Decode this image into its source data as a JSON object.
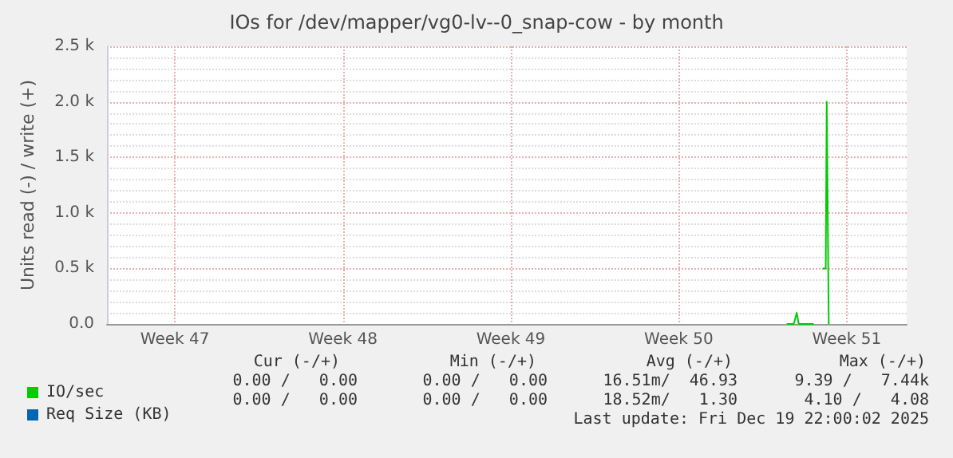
{
  "chart_data": {
    "type": "line",
    "title": "IOs for /dev/mapper/vg0-lv--0_snap-cow - by month",
    "ylabel": "Units read (-) / write (+)",
    "x": [
      "2025-12-16T00:00",
      "2025-12-16T03:00",
      "2025-12-16T07:00",
      "2025-12-16T10:00",
      "2025-12-16T12:00",
      "2025-12-16T14:00",
      "2025-12-16T22:00",
      "2025-12-17T03:00",
      "2025-12-17T08:00",
      "2025-12-17T12:00",
      "2025-12-17T15:00",
      "2025-12-17T16:00",
      "2025-12-17T17:00",
      "2025-12-17T18:00"
    ],
    "series": [
      {
        "name": "IO/sec",
        "color": "#00cc00",
        "values": [
          0,
          0,
          0,
          100,
          0,
          0,
          0,
          0,
          null,
          500,
          500,
          2000,
          2000,
          0
        ]
      },
      {
        "name": "Req Size (KB)",
        "color": "#0066b3",
        "values": [
          null,
          null,
          null,
          null,
          null,
          null,
          null,
          null,
          null,
          null,
          null,
          null,
          null,
          null
        ]
      }
    ],
    "xlim": [
      "2025-11-17T16:00",
      "2025-12-21T00:00"
    ],
    "xticks": [
      {
        "value": "2025-11-20T12:00",
        "label": "Week 47"
      },
      {
        "value": "2025-11-27T12:00",
        "label": "Week 48"
      },
      {
        "value": "2025-12-04T12:00",
        "label": "Week 49"
      },
      {
        "value": "2025-12-11T12:00",
        "label": "Week 50"
      },
      {
        "value": "2025-12-18T12:00",
        "label": "Week 51"
      }
    ],
    "ylim": [
      0,
      2500
    ],
    "yticks": [
      {
        "value": 0,
        "label": "0.0"
      },
      {
        "value": 500,
        "label": "0.5 k"
      },
      {
        "value": 1000,
        "label": "1.0 k"
      },
      {
        "value": 1500,
        "label": "1.5 k"
      },
      {
        "value": 2000,
        "label": "2.0 k"
      },
      {
        "value": 2500,
        "label": "2.5 k"
      }
    ],
    "grid": true,
    "legend": "bottom left",
    "marker": "none",
    "line_style": "solid",
    "annotations": [
      "Cur (-/+)",
      "Min (-/+)",
      "Avg (-/+)",
      "Max (-/+)",
      "0.00 /   0.00",
      "0.00 /   0.00",
      "16.51m/  46.93",
      "9.39 /   7.44k",
      "0.00 /   0.00",
      "0.00 /   0.00",
      "18.52m/   1.30",
      "4.10 /   4.08",
      "Last update: Fri Dec 19 22:00:02 2025"
    ]
  }
}
